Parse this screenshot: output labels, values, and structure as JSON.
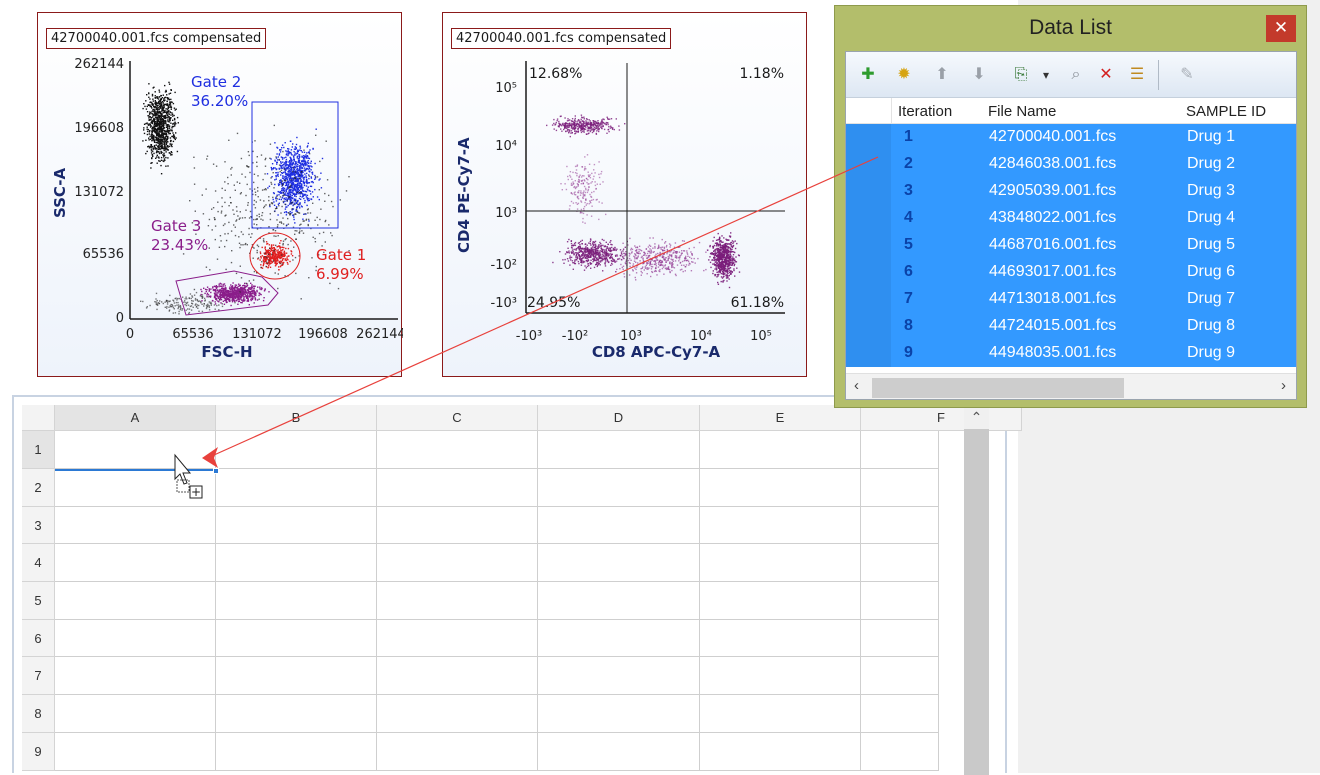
{
  "plot1": {
    "title": "42700040.001.fcs compensated",
    "x_label": "FSC-H",
    "y_label": "SSC-A",
    "x_ticks": [
      "0",
      "65536",
      "131072",
      "196608",
      "262144"
    ],
    "y_ticks": [
      "262144",
      "196608",
      "131072",
      "65536",
      "0"
    ],
    "gates": [
      {
        "name": "Gate 2",
        "percent": "36.20%",
        "color": "#1f2fe0"
      },
      {
        "name": "Gate 3",
        "percent": "23.43%",
        "color": "#8a1d8a"
      },
      {
        "name": "Gate 1",
        "percent": "6.99%",
        "color": "#e02020"
      }
    ]
  },
  "plot2": {
    "title": "42700040.001.fcs compensated",
    "x_label": "CD8 APC-Cy7-A",
    "y_label": "CD4 PE-Cy7-A",
    "x_ticks": [
      "-10³",
      "-10²",
      "10³",
      "10⁴",
      "10⁵"
    ],
    "y_ticks": [
      "10⁵",
      "10⁴",
      "10³",
      "-10²",
      "-10³"
    ],
    "quadrants": {
      "top_left": "12.68%",
      "top_right": "1.18%",
      "bottom_left": "24.95%",
      "bottom_right": "61.18%"
    }
  },
  "spreadsheet": {
    "columns": [
      "A",
      "B",
      "C",
      "D",
      "E",
      "F"
    ],
    "rows": [
      "1",
      "2",
      "3",
      "4",
      "5",
      "6",
      "7",
      "8",
      "9"
    ],
    "scroll_up_glyph": "⌃"
  },
  "data_list": {
    "title": "Data List",
    "close_glyph": "✕",
    "toolbar": [
      {
        "name": "add-icon",
        "glyph": "✚",
        "color": "#2e9b2e"
      },
      {
        "name": "settings-icon",
        "glyph": "✹",
        "color": "#d6a412"
      },
      {
        "name": "move-up-icon",
        "glyph": "⬆",
        "color": "#9aa0a8"
      },
      {
        "name": "move-down-icon",
        "glyph": "⬇",
        "color": "#9aa0a8"
      },
      {
        "name": "export-icon",
        "glyph": "⎘",
        "color": "#3a7a3a"
      },
      {
        "name": "dropdown-icon",
        "glyph": "▾",
        "color": "#333333"
      },
      {
        "name": "search-icon",
        "glyph": "⌕",
        "color": "#8a9098"
      },
      {
        "name": "delete-icon",
        "glyph": "✕",
        "color": "#d42020"
      },
      {
        "name": "list-icon",
        "glyph": "☰",
        "color": "#c08a20"
      },
      {
        "name": "edit-icon",
        "glyph": "✎",
        "color": "#a8aeb6"
      }
    ],
    "headers": [
      "Iteration",
      "File Name",
      "SAMPLE ID"
    ],
    "rows": [
      {
        "iteration": "1",
        "file": "42700040.001.fcs",
        "sample": "Drug 1"
      },
      {
        "iteration": "2",
        "file": "42846038.001.fcs",
        "sample": "Drug 2"
      },
      {
        "iteration": "3",
        "file": "42905039.001.fcs",
        "sample": "Drug 3"
      },
      {
        "iteration": "4",
        "file": "43848022.001.fcs",
        "sample": "Drug 4"
      },
      {
        "iteration": "5",
        "file": "44687016.001.fcs",
        "sample": "Drug 5"
      },
      {
        "iteration": "6",
        "file": "44693017.001.fcs",
        "sample": "Drug 6"
      },
      {
        "iteration": "7",
        "file": "44713018.001.fcs",
        "sample": "Drug 7"
      },
      {
        "iteration": "8",
        "file": "44724015.001.fcs",
        "sample": "Drug 8"
      },
      {
        "iteration": "9",
        "file": "44948035.001.fcs",
        "sample": "Drug 9"
      }
    ],
    "scroll_left": "‹",
    "scroll_right": "›"
  },
  "drag_cursor": {
    "plus_glyph": "+"
  }
}
